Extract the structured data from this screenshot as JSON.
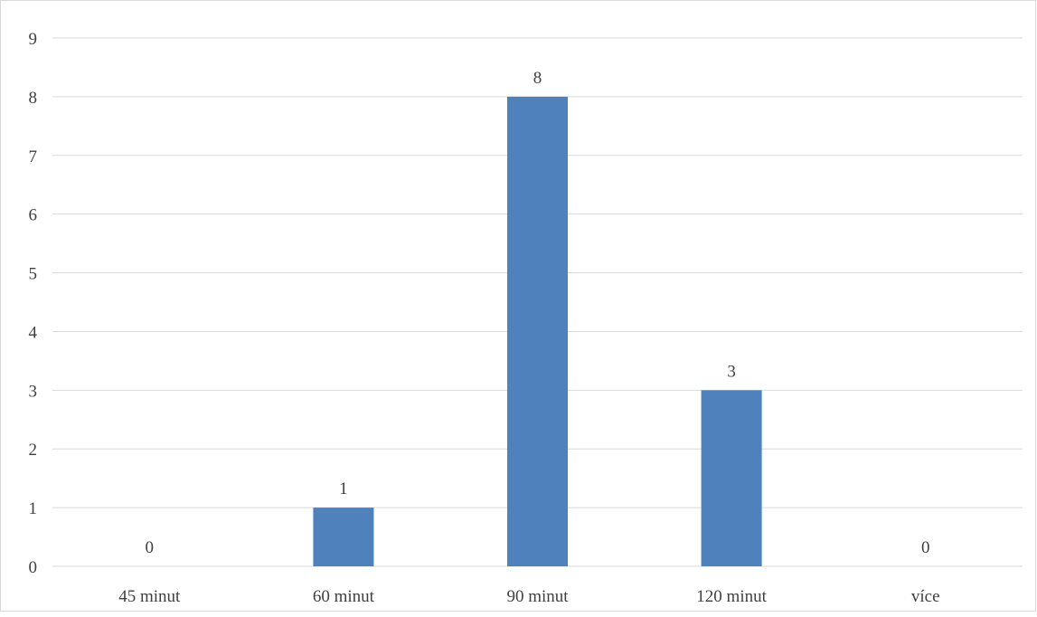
{
  "chart_data": {
    "type": "bar",
    "categories": [
      "45 minut",
      "60 minut",
      "90 minut",
      "120 minut",
      "více"
    ],
    "values": [
      0,
      1,
      8,
      3,
      0
    ],
    "title": "",
    "xlabel": "",
    "ylabel": "",
    "ylim": [
      0,
      9
    ],
    "yticks": [
      "0",
      "1",
      "2",
      "3",
      "4",
      "5",
      "6",
      "7",
      "8",
      "9"
    ],
    "data_labels": [
      "0",
      "1",
      "8",
      "3",
      "0"
    ],
    "grid": true,
    "legend": "none",
    "bar_color": "#4f81bd",
    "grid_color": "#d9d9d9"
  }
}
